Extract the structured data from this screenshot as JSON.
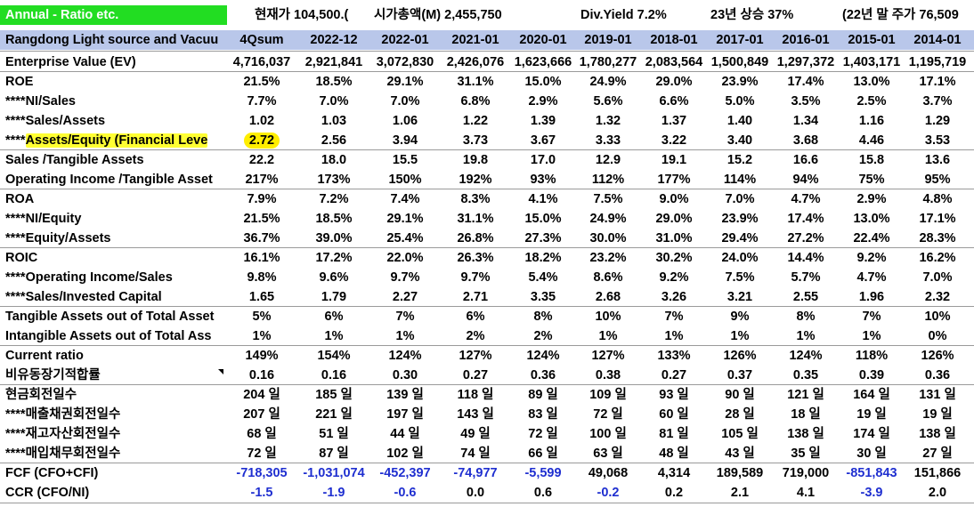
{
  "top": {
    "title": "Annual - Ratio etc.",
    "price": "현재가  104,500.(",
    "mcap": "시가총액(M) 2,455,750",
    "divyield": "Div.Yield  7.2%",
    "rise": "23년 상승 37%",
    "prevprice": "(22년 말 주가 76,509"
  },
  "header": {
    "company": "Rangdong Light source and Vacuu",
    "cols": [
      "4Qsum",
      "2022-12",
      "2022-01",
      "2021-01",
      "2020-01",
      "2019-01",
      "2018-01",
      "2017-01",
      "2016-01",
      "2015-01",
      "2014-01"
    ]
  },
  "rows": [
    {
      "label": "Enterprise Value (EV)",
      "values": [
        "4,716,037",
        "2,921,841",
        "3,072,830",
        "2,426,076",
        "1,623,666",
        "1,780,277",
        "2,083,564",
        "1,500,849",
        "1,297,372",
        "1,403,171",
        "1,195,719"
      ]
    },
    {
      "label": "ROE",
      "values": [
        "21.5%",
        "18.5%",
        "29.1%",
        "31.1%",
        "15.0%",
        "24.9%",
        "29.0%",
        "23.9%",
        "17.4%",
        "13.0%",
        "17.1%"
      ]
    },
    {
      "label": "****NI/Sales",
      "values": [
        "7.7%",
        "7.0%",
        "7.0%",
        "6.8%",
        "2.9%",
        "5.6%",
        "6.6%",
        "5.0%",
        "3.5%",
        "2.5%",
        "3.7%"
      ]
    },
    {
      "label": "****Sales/Assets",
      "values": [
        "1.02",
        "1.03",
        "1.06",
        "1.22",
        "1.39",
        "1.32",
        "1.37",
        "1.40",
        "1.34",
        "1.16",
        "1.29"
      ]
    },
    {
      "label": "****Assets/Equity (Financial Leve",
      "values": [
        "2.72",
        "2.56",
        "3.94",
        "3.73",
        "3.67",
        "3.33",
        "3.22",
        "3.40",
        "3.68",
        "4.46",
        "3.53"
      ]
    },
    {
      "label": "Sales /Tangible Assets",
      "values": [
        "22.2",
        "18.0",
        "15.5",
        "19.8",
        "17.0",
        "12.9",
        "19.1",
        "15.2",
        "16.6",
        "15.8",
        "13.6"
      ]
    },
    {
      "label": "Operating Income /Tangible Asset",
      "values": [
        "217%",
        "173%",
        "150%",
        "192%",
        "93%",
        "112%",
        "177%",
        "114%",
        "94%",
        "75%",
        "95%"
      ]
    },
    {
      "label": "ROA",
      "values": [
        "7.9%",
        "7.2%",
        "7.4%",
        "8.3%",
        "4.1%",
        "7.5%",
        "9.0%",
        "7.0%",
        "4.7%",
        "2.9%",
        "4.8%"
      ]
    },
    {
      "label": "****NI/Equity",
      "values": [
        "21.5%",
        "18.5%",
        "29.1%",
        "31.1%",
        "15.0%",
        "24.9%",
        "29.0%",
        "23.9%",
        "17.4%",
        "13.0%",
        "17.1%"
      ]
    },
    {
      "label": "****Equity/Assets",
      "values": [
        "36.7%",
        "39.0%",
        "25.4%",
        "26.8%",
        "27.3%",
        "30.0%",
        "31.0%",
        "29.4%",
        "27.2%",
        "22.4%",
        "28.3%"
      ]
    },
    {
      "label": "ROIC",
      "values": [
        "16.1%",
        "17.2%",
        "22.0%",
        "26.3%",
        "18.2%",
        "23.2%",
        "30.2%",
        "24.0%",
        "14.4%",
        "9.2%",
        "16.2%"
      ]
    },
    {
      "label": "****Operating Income/Sales",
      "values": [
        "9.8%",
        "9.6%",
        "9.7%",
        "9.7%",
        "5.4%",
        "8.6%",
        "9.2%",
        "7.5%",
        "5.7%",
        "4.7%",
        "7.0%"
      ]
    },
    {
      "label": "****Sales/Invested Capital",
      "values": [
        "1.65",
        "1.79",
        "2.27",
        "2.71",
        "3.35",
        "2.68",
        "3.26",
        "3.21",
        "2.55",
        "1.96",
        "2.32"
      ]
    },
    {
      "label": "Tangible Assets out of Total Asset",
      "values": [
        "5%",
        "6%",
        "7%",
        "6%",
        "8%",
        "10%",
        "7%",
        "9%",
        "8%",
        "7%",
        "10%"
      ]
    },
    {
      "label": "Intangible Assets out of Total Ass",
      "values": [
        "1%",
        "1%",
        "1%",
        "2%",
        "2%",
        "1%",
        "1%",
        "1%",
        "1%",
        "1%",
        "0%"
      ]
    },
    {
      "label": "Current ratio",
      "values": [
        "149%",
        "154%",
        "124%",
        "127%",
        "124%",
        "127%",
        "133%",
        "126%",
        "124%",
        "118%",
        "126%"
      ]
    },
    {
      "label": "비유동장기적합률",
      "values": [
        "0.16",
        "0.16",
        "0.30",
        "0.27",
        "0.36",
        "0.38",
        "0.27",
        "0.37",
        "0.35",
        "0.39",
        "0.36"
      ]
    },
    {
      "label": "현금회전일수",
      "values": [
        "204 일",
        "185 일",
        "139 일",
        "118 일",
        "89 일",
        "109 일",
        "93 일",
        "90 일",
        "121 일",
        "164 일",
        "131 일"
      ]
    },
    {
      "label": "****매출채권회전일수",
      "values": [
        "207 일",
        "221 일",
        "197 일",
        "143 일",
        "83 일",
        "72 일",
        "60 일",
        "28 일",
        "18 일",
        "19 일",
        "19 일"
      ]
    },
    {
      "label": "****재고자산회전일수",
      "values": [
        "68 일",
        "51 일",
        "44 일",
        "49 일",
        "72 일",
        "100 일",
        "81 일",
        "105 일",
        "138 일",
        "174 일",
        "138 일"
      ]
    },
    {
      "label": "****매입채무회전일수",
      "values": [
        "72 일",
        "87 일",
        "102 일",
        "74 일",
        "66 일",
        "63 일",
        "48 일",
        "43 일",
        "35 일",
        "30 일",
        "27 일"
      ]
    },
    {
      "label": "FCF (CFO+CFI)",
      "values": [
        "-718,305",
        "-1,031,074",
        "-452,397",
        "-74,977",
        "-5,599",
        "49,068",
        "4,314",
        "189,589",
        "719,000",
        "-851,843",
        "151,866"
      ]
    },
    {
      "label": "CCR (CFO/NI)",
      "values": [
        "-1.5",
        "-1.9",
        "-0.6",
        "0.0",
        "0.6",
        "-0.2",
        "0.2",
        "2.1",
        "4.1",
        "-3.9",
        "2.0"
      ]
    }
  ],
  "colors": {
    "title_bg": "#22dd22",
    "header_bg": "#b9c7ea",
    "highlight": "#ffee00",
    "negative_blue": "#1f2fd0"
  }
}
